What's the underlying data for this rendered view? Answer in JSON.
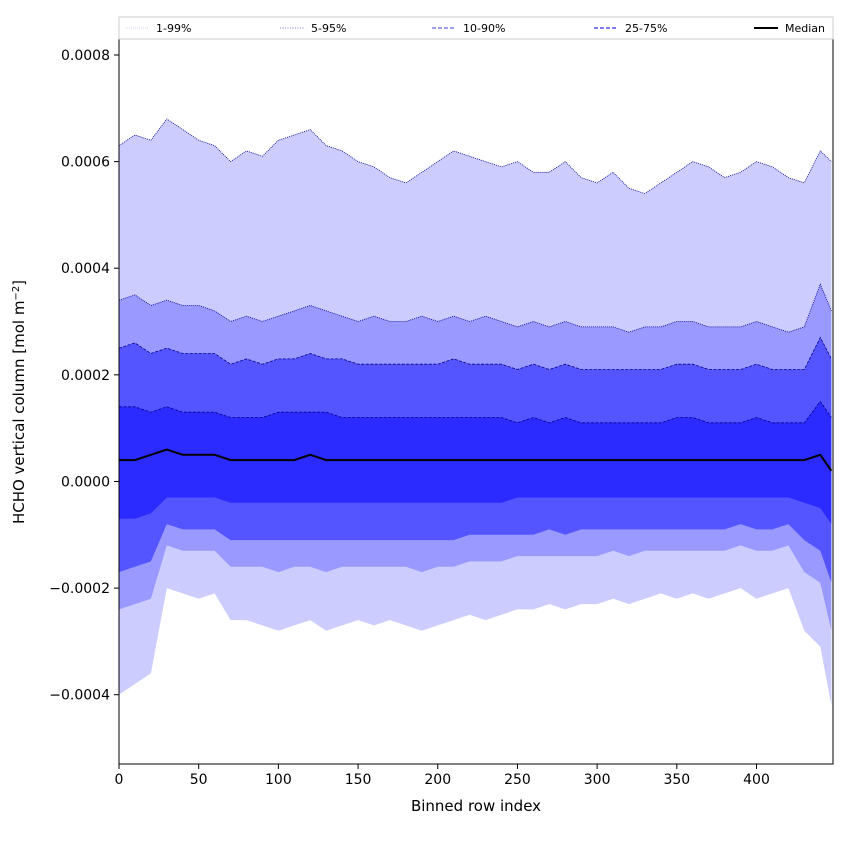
{
  "chart_data": {
    "type": "area",
    "title": "",
    "xlabel": "Binned row index",
    "ylabel_main": "HCHO vertical column [mol m",
    "ylabel_sup": "−2",
    "ylabel_close": "]",
    "xlim": [
      0,
      448
    ],
    "ylim": [
      -0.00053,
      0.00083
    ],
    "x_ticks": [
      0,
      50,
      100,
      150,
      200,
      250,
      300,
      350,
      400
    ],
    "x_tick_labels": [
      "0",
      "50",
      "100",
      "150",
      "200",
      "250",
      "300",
      "350",
      "400"
    ],
    "y_ticks": [
      -0.0004,
      -0.0002,
      0.0,
      0.0002,
      0.0004,
      0.0006,
      0.0008
    ],
    "y_tick_labels": [
      "−0.0004",
      "−0.0002",
      "0.0000",
      "0.0002",
      "0.0004",
      "0.0006",
      "0.0008"
    ],
    "grid": false,
    "legend_position": "top",
    "colors": {
      "band_1_99": "#ccccff",
      "band_5_95": "#9999ff",
      "band_10_90": "#5555ff",
      "band_25_75": "#2b2bff",
      "median": "#000000",
      "upper_lines": "#00008b"
    },
    "legend": [
      {
        "label": "1-99%",
        "style": "dotted-thin",
        "color": "#c8c8f0"
      },
      {
        "label": "5-95%",
        "style": "dotted",
        "color": "#8080d0"
      },
      {
        "label": "10-90%",
        "style": "dashed",
        "color": "#6666ee"
      },
      {
        "label": "25-75%",
        "style": "dashed",
        "color": "#3333dd"
      },
      {
        "label": "Median",
        "style": "solid",
        "color": "#000000"
      }
    ],
    "x": [
      0,
      10,
      20,
      30,
      40,
      50,
      60,
      70,
      80,
      90,
      100,
      110,
      120,
      130,
      140,
      150,
      160,
      170,
      180,
      190,
      200,
      210,
      220,
      230,
      240,
      250,
      260,
      270,
      280,
      290,
      300,
      310,
      320,
      330,
      340,
      350,
      360,
      370,
      380,
      390,
      400,
      410,
      420,
      430,
      440,
      447
    ],
    "series": [
      {
        "name": "1-99%",
        "upper": [
          0.00063,
          0.00065,
          0.00064,
          0.00068,
          0.00066,
          0.00064,
          0.00063,
          0.0006,
          0.00062,
          0.00061,
          0.00064,
          0.00065,
          0.00066,
          0.00063,
          0.00062,
          0.0006,
          0.00059,
          0.00057,
          0.00056,
          0.00058,
          0.0006,
          0.00062,
          0.00061,
          0.0006,
          0.00059,
          0.0006,
          0.00058,
          0.00058,
          0.0006,
          0.00057,
          0.00056,
          0.00058,
          0.00055,
          0.00054,
          0.00056,
          0.00058,
          0.0006,
          0.00059,
          0.00057,
          0.00058,
          0.0006,
          0.00059,
          0.00057,
          0.00056,
          0.00062,
          0.0006
        ],
        "lower": [
          -0.0004,
          -0.00038,
          -0.00036,
          -0.0002,
          -0.00021,
          -0.00022,
          -0.00021,
          -0.00026,
          -0.00026,
          -0.00027,
          -0.00028,
          -0.00027,
          -0.00026,
          -0.00028,
          -0.00027,
          -0.00026,
          -0.00027,
          -0.00026,
          -0.00027,
          -0.00028,
          -0.00027,
          -0.00026,
          -0.00025,
          -0.00026,
          -0.00025,
          -0.00024,
          -0.00024,
          -0.00023,
          -0.00024,
          -0.00023,
          -0.00023,
          -0.00022,
          -0.00023,
          -0.00022,
          -0.00021,
          -0.00022,
          -0.00021,
          -0.00022,
          -0.00021,
          -0.0002,
          -0.00022,
          -0.00021,
          -0.0002,
          -0.00028,
          -0.00031,
          -0.00042
        ]
      },
      {
        "name": "5-95%",
        "upper": [
          0.00034,
          0.00035,
          0.00033,
          0.00034,
          0.00033,
          0.00033,
          0.00032,
          0.0003,
          0.00031,
          0.0003,
          0.00031,
          0.00032,
          0.00033,
          0.00032,
          0.00031,
          0.0003,
          0.00031,
          0.0003,
          0.0003,
          0.00031,
          0.0003,
          0.00031,
          0.0003,
          0.00031,
          0.0003,
          0.00029,
          0.0003,
          0.00029,
          0.0003,
          0.00029,
          0.00029,
          0.00029,
          0.00028,
          0.00029,
          0.00029,
          0.0003,
          0.0003,
          0.00029,
          0.00029,
          0.00029,
          0.0003,
          0.00029,
          0.00028,
          0.00029,
          0.00037,
          0.00032
        ],
        "lower": [
          -0.00024,
          -0.00023,
          -0.00022,
          -0.00012,
          -0.00013,
          -0.00013,
          -0.00013,
          -0.00016,
          -0.00016,
          -0.00016,
          -0.00017,
          -0.00016,
          -0.00016,
          -0.00017,
          -0.00016,
          -0.00016,
          -0.00016,
          -0.00016,
          -0.00016,
          -0.00017,
          -0.00016,
          -0.00016,
          -0.00015,
          -0.00015,
          -0.00015,
          -0.00014,
          -0.00014,
          -0.00014,
          -0.00014,
          -0.00014,
          -0.00014,
          -0.00013,
          -0.00014,
          -0.00013,
          -0.00013,
          -0.00013,
          -0.00013,
          -0.00013,
          -0.00013,
          -0.00012,
          -0.00013,
          -0.00013,
          -0.00012,
          -0.00017,
          -0.00019,
          -0.00028
        ]
      },
      {
        "name": "10-90%",
        "upper": [
          0.00025,
          0.00026,
          0.00024,
          0.00025,
          0.00024,
          0.00024,
          0.00024,
          0.00022,
          0.00023,
          0.00022,
          0.00023,
          0.00023,
          0.00024,
          0.00023,
          0.00023,
          0.00022,
          0.00022,
          0.00022,
          0.00022,
          0.00022,
          0.00022,
          0.00023,
          0.00022,
          0.00022,
          0.00022,
          0.00021,
          0.00022,
          0.00021,
          0.00022,
          0.00021,
          0.00021,
          0.00021,
          0.00021,
          0.00021,
          0.00021,
          0.00022,
          0.00022,
          0.00021,
          0.00021,
          0.00021,
          0.00022,
          0.00021,
          0.00021,
          0.00021,
          0.00027,
          0.00023
        ],
        "lower": [
          -0.00017,
          -0.00016,
          -0.00015,
          -8e-05,
          -9e-05,
          -9e-05,
          -9e-05,
          -0.00011,
          -0.00011,
          -0.00011,
          -0.00011,
          -0.00011,
          -0.00011,
          -0.00011,
          -0.00011,
          -0.00011,
          -0.00011,
          -0.00011,
          -0.00011,
          -0.00011,
          -0.00011,
          -0.00011,
          -0.0001,
          -0.0001,
          -0.0001,
          -0.0001,
          -0.0001,
          -9e-05,
          -0.0001,
          -9e-05,
          -9e-05,
          -9e-05,
          -9e-05,
          -9e-05,
          -9e-05,
          -9e-05,
          -9e-05,
          -9e-05,
          -9e-05,
          -8e-05,
          -9e-05,
          -9e-05,
          -8e-05,
          -0.00011,
          -0.00013,
          -0.00019
        ]
      },
      {
        "name": "25-75%",
        "upper": [
          0.00014,
          0.00014,
          0.00013,
          0.00014,
          0.00013,
          0.00013,
          0.00013,
          0.00012,
          0.00012,
          0.00012,
          0.00013,
          0.00013,
          0.00013,
          0.00013,
          0.00012,
          0.00012,
          0.00012,
          0.00012,
          0.00012,
          0.00012,
          0.00012,
          0.00012,
          0.00012,
          0.00012,
          0.00012,
          0.00011,
          0.00012,
          0.00011,
          0.00012,
          0.00011,
          0.00011,
          0.00011,
          0.00011,
          0.00011,
          0.00011,
          0.00012,
          0.00012,
          0.00011,
          0.00011,
          0.00011,
          0.00012,
          0.00011,
          0.00011,
          0.00011,
          0.00015,
          0.00012
        ],
        "lower": [
          -7e-05,
          -7e-05,
          -6e-05,
          -3e-05,
          -3e-05,
          -3e-05,
          -3e-05,
          -4e-05,
          -4e-05,
          -4e-05,
          -4e-05,
          -4e-05,
          -4e-05,
          -4e-05,
          -4e-05,
          -4e-05,
          -4e-05,
          -4e-05,
          -4e-05,
          -4e-05,
          -4e-05,
          -4e-05,
          -4e-05,
          -4e-05,
          -4e-05,
          -3e-05,
          -3e-05,
          -3e-05,
          -3e-05,
          -3e-05,
          -3e-05,
          -3e-05,
          -3e-05,
          -3e-05,
          -3e-05,
          -3e-05,
          -3e-05,
          -3e-05,
          -3e-05,
          -3e-05,
          -3e-05,
          -3e-05,
          -3e-05,
          -4e-05,
          -5e-05,
          -8e-05
        ]
      },
      {
        "name": "Median",
        "values": [
          4e-05,
          4e-05,
          5e-05,
          6e-05,
          5e-05,
          5e-05,
          5e-05,
          4e-05,
          4e-05,
          4e-05,
          4e-05,
          4e-05,
          5e-05,
          4e-05,
          4e-05,
          4e-05,
          4e-05,
          4e-05,
          4e-05,
          4e-05,
          4e-05,
          4e-05,
          4e-05,
          4e-05,
          4e-05,
          4e-05,
          4e-05,
          4e-05,
          4e-05,
          4e-05,
          4e-05,
          4e-05,
          4e-05,
          4e-05,
          4e-05,
          4e-05,
          4e-05,
          4e-05,
          4e-05,
          4e-05,
          4e-05,
          4e-05,
          4e-05,
          4e-05,
          5e-05,
          2e-05
        ]
      }
    ]
  }
}
